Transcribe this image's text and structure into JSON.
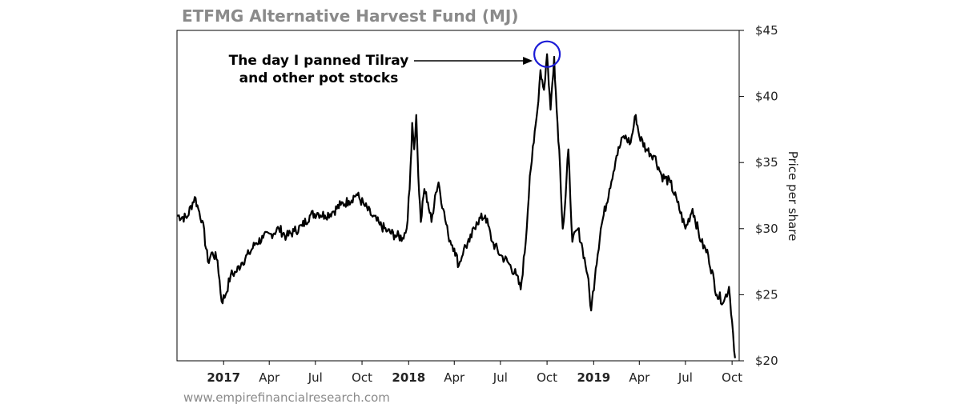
{
  "chart_data": {
    "type": "line",
    "title": "ETFMG Alternative Harvest Fund (MJ)",
    "xlabel": "",
    "ylabel": "Price per share",
    "x_range": [
      "2016-10-01",
      "2019-10-15"
    ],
    "ylim": [
      20,
      45
    ],
    "y_ticks": [
      20,
      25,
      30,
      35,
      40,
      45
    ],
    "y_tick_labels": [
      "$20",
      "$25",
      "$30",
      "$35",
      "$40",
      "$45"
    ],
    "x_ticks": [
      {
        "date": "2017-01-01",
        "label": "2017",
        "bold": true
      },
      {
        "date": "2017-04-01",
        "label": "Apr",
        "bold": false
      },
      {
        "date": "2017-07-01",
        "label": "Jul",
        "bold": false
      },
      {
        "date": "2017-10-01",
        "label": "Oct",
        "bold": false
      },
      {
        "date": "2018-01-01",
        "label": "2018",
        "bold": true
      },
      {
        "date": "2018-04-01",
        "label": "Apr",
        "bold": false
      },
      {
        "date": "2018-07-01",
        "label": "Jul",
        "bold": false
      },
      {
        "date": "2018-10-01",
        "label": "Oct",
        "bold": false
      },
      {
        "date": "2019-01-01",
        "label": "2019",
        "bold": true
      },
      {
        "date": "2019-04-01",
        "label": "Apr",
        "bold": false
      },
      {
        "date": "2019-07-01",
        "label": "Jul",
        "bold": false
      },
      {
        "date": "2019-10-01",
        "label": "Oct",
        "bold": false
      }
    ],
    "axis_position": "right",
    "grid": false,
    "line_color": "#000000",
    "series": [
      {
        "x": [
          "2016-10-01",
          "2016-10-20",
          "2016-11-05",
          "2016-11-12",
          "2016-11-20",
          "2016-12-01",
          "2016-12-10",
          "2016-12-20",
          "2016-12-28",
          "2017-01-05",
          "2017-01-15",
          "2017-01-25",
          "2017-02-05",
          "2017-02-20",
          "2017-03-05",
          "2017-03-20",
          "2017-04-05",
          "2017-04-20",
          "2017-05-05",
          "2017-05-20",
          "2017-06-05",
          "2017-06-20",
          "2017-07-05",
          "2017-07-20",
          "2017-08-05",
          "2017-08-20",
          "2017-09-05",
          "2017-09-20",
          "2017-10-05",
          "2017-10-20",
          "2017-11-05",
          "2017-11-20",
          "2017-12-05",
          "2017-12-20",
          "2017-12-28",
          "2018-01-03",
          "2018-01-08",
          "2018-01-12",
          "2018-01-16",
          "2018-01-20",
          "2018-01-25",
          "2018-02-01",
          "2018-02-08",
          "2018-02-15",
          "2018-02-22",
          "2018-03-01",
          "2018-03-10",
          "2018-03-20",
          "2018-04-01",
          "2018-04-10",
          "2018-04-20",
          "2018-05-01",
          "2018-05-15",
          "2018-06-01",
          "2018-06-15",
          "2018-07-01",
          "2018-07-15",
          "2018-08-01",
          "2018-08-10",
          "2018-08-20",
          "2018-08-28",
          "2018-09-05",
          "2018-09-12",
          "2018-09-18",
          "2018-09-25",
          "2018-10-01",
          "2018-10-08",
          "2018-10-15",
          "2018-10-20",
          "2018-10-25",
          "2018-11-01",
          "2018-11-05",
          "2018-11-12",
          "2018-11-20",
          "2018-12-01",
          "2018-12-10",
          "2018-12-20",
          "2018-12-27",
          "2019-01-05",
          "2019-01-15",
          "2019-02-01",
          "2019-02-15",
          "2019-03-01",
          "2019-03-15",
          "2019-03-25",
          "2019-04-01",
          "2019-04-15",
          "2019-05-01",
          "2019-05-15",
          "2019-06-01",
          "2019-06-15",
          "2019-07-01",
          "2019-07-15",
          "2019-08-01",
          "2019-08-15",
          "2019-09-01",
          "2019-09-15",
          "2019-09-25",
          "2019-10-01",
          "2019-10-07"
        ],
        "y": [
          31.0,
          30.8,
          32.4,
          31.5,
          30.6,
          27.5,
          28.2,
          27.6,
          24.5,
          25.0,
          26.5,
          26.7,
          27.4,
          28.1,
          28.9,
          29.3,
          29.6,
          30.0,
          29.4,
          29.8,
          30.2,
          31.0,
          31.2,
          31.0,
          31.3,
          31.8,
          32.1,
          32.6,
          31.8,
          31.0,
          30.3,
          29.8,
          29.5,
          29.3,
          30.0,
          33.0,
          38.0,
          36.0,
          38.6,
          34.0,
          30.5,
          33.0,
          32.0,
          30.5,
          32.5,
          33.5,
          31.5,
          29.5,
          28.5,
          27.2,
          28.5,
          29.0,
          30.5,
          31.0,
          29.0,
          28.0,
          27.5,
          26.5,
          25.4,
          29.0,
          34.0,
          36.5,
          39.0,
          42.0,
          40.5,
          43.2,
          39.0,
          43.0,
          39.0,
          36.0,
          30.0,
          31.5,
          36.0,
          29.0,
          30.0,
          28.5,
          26.5,
          23.8,
          27.0,
          30.0,
          33.0,
          35.5,
          37.0,
          36.5,
          38.6,
          37.0,
          36.0,
          35.5,
          34.0,
          33.5,
          32.0,
          30.0,
          31.5,
          29.0,
          28.0,
          25.0,
          24.5,
          25.6,
          23.0,
          20.2
        ]
      }
    ],
    "annotations": [
      {
        "lines": [
          "The day I panned Tilray",
          "and other pot stocks"
        ],
        "target_date": "2018-10-01",
        "target_value": 43.2,
        "marker": "circle",
        "marker_color": "#1a1ad6"
      }
    ],
    "source": "www.empirefinancialresearch.com"
  }
}
